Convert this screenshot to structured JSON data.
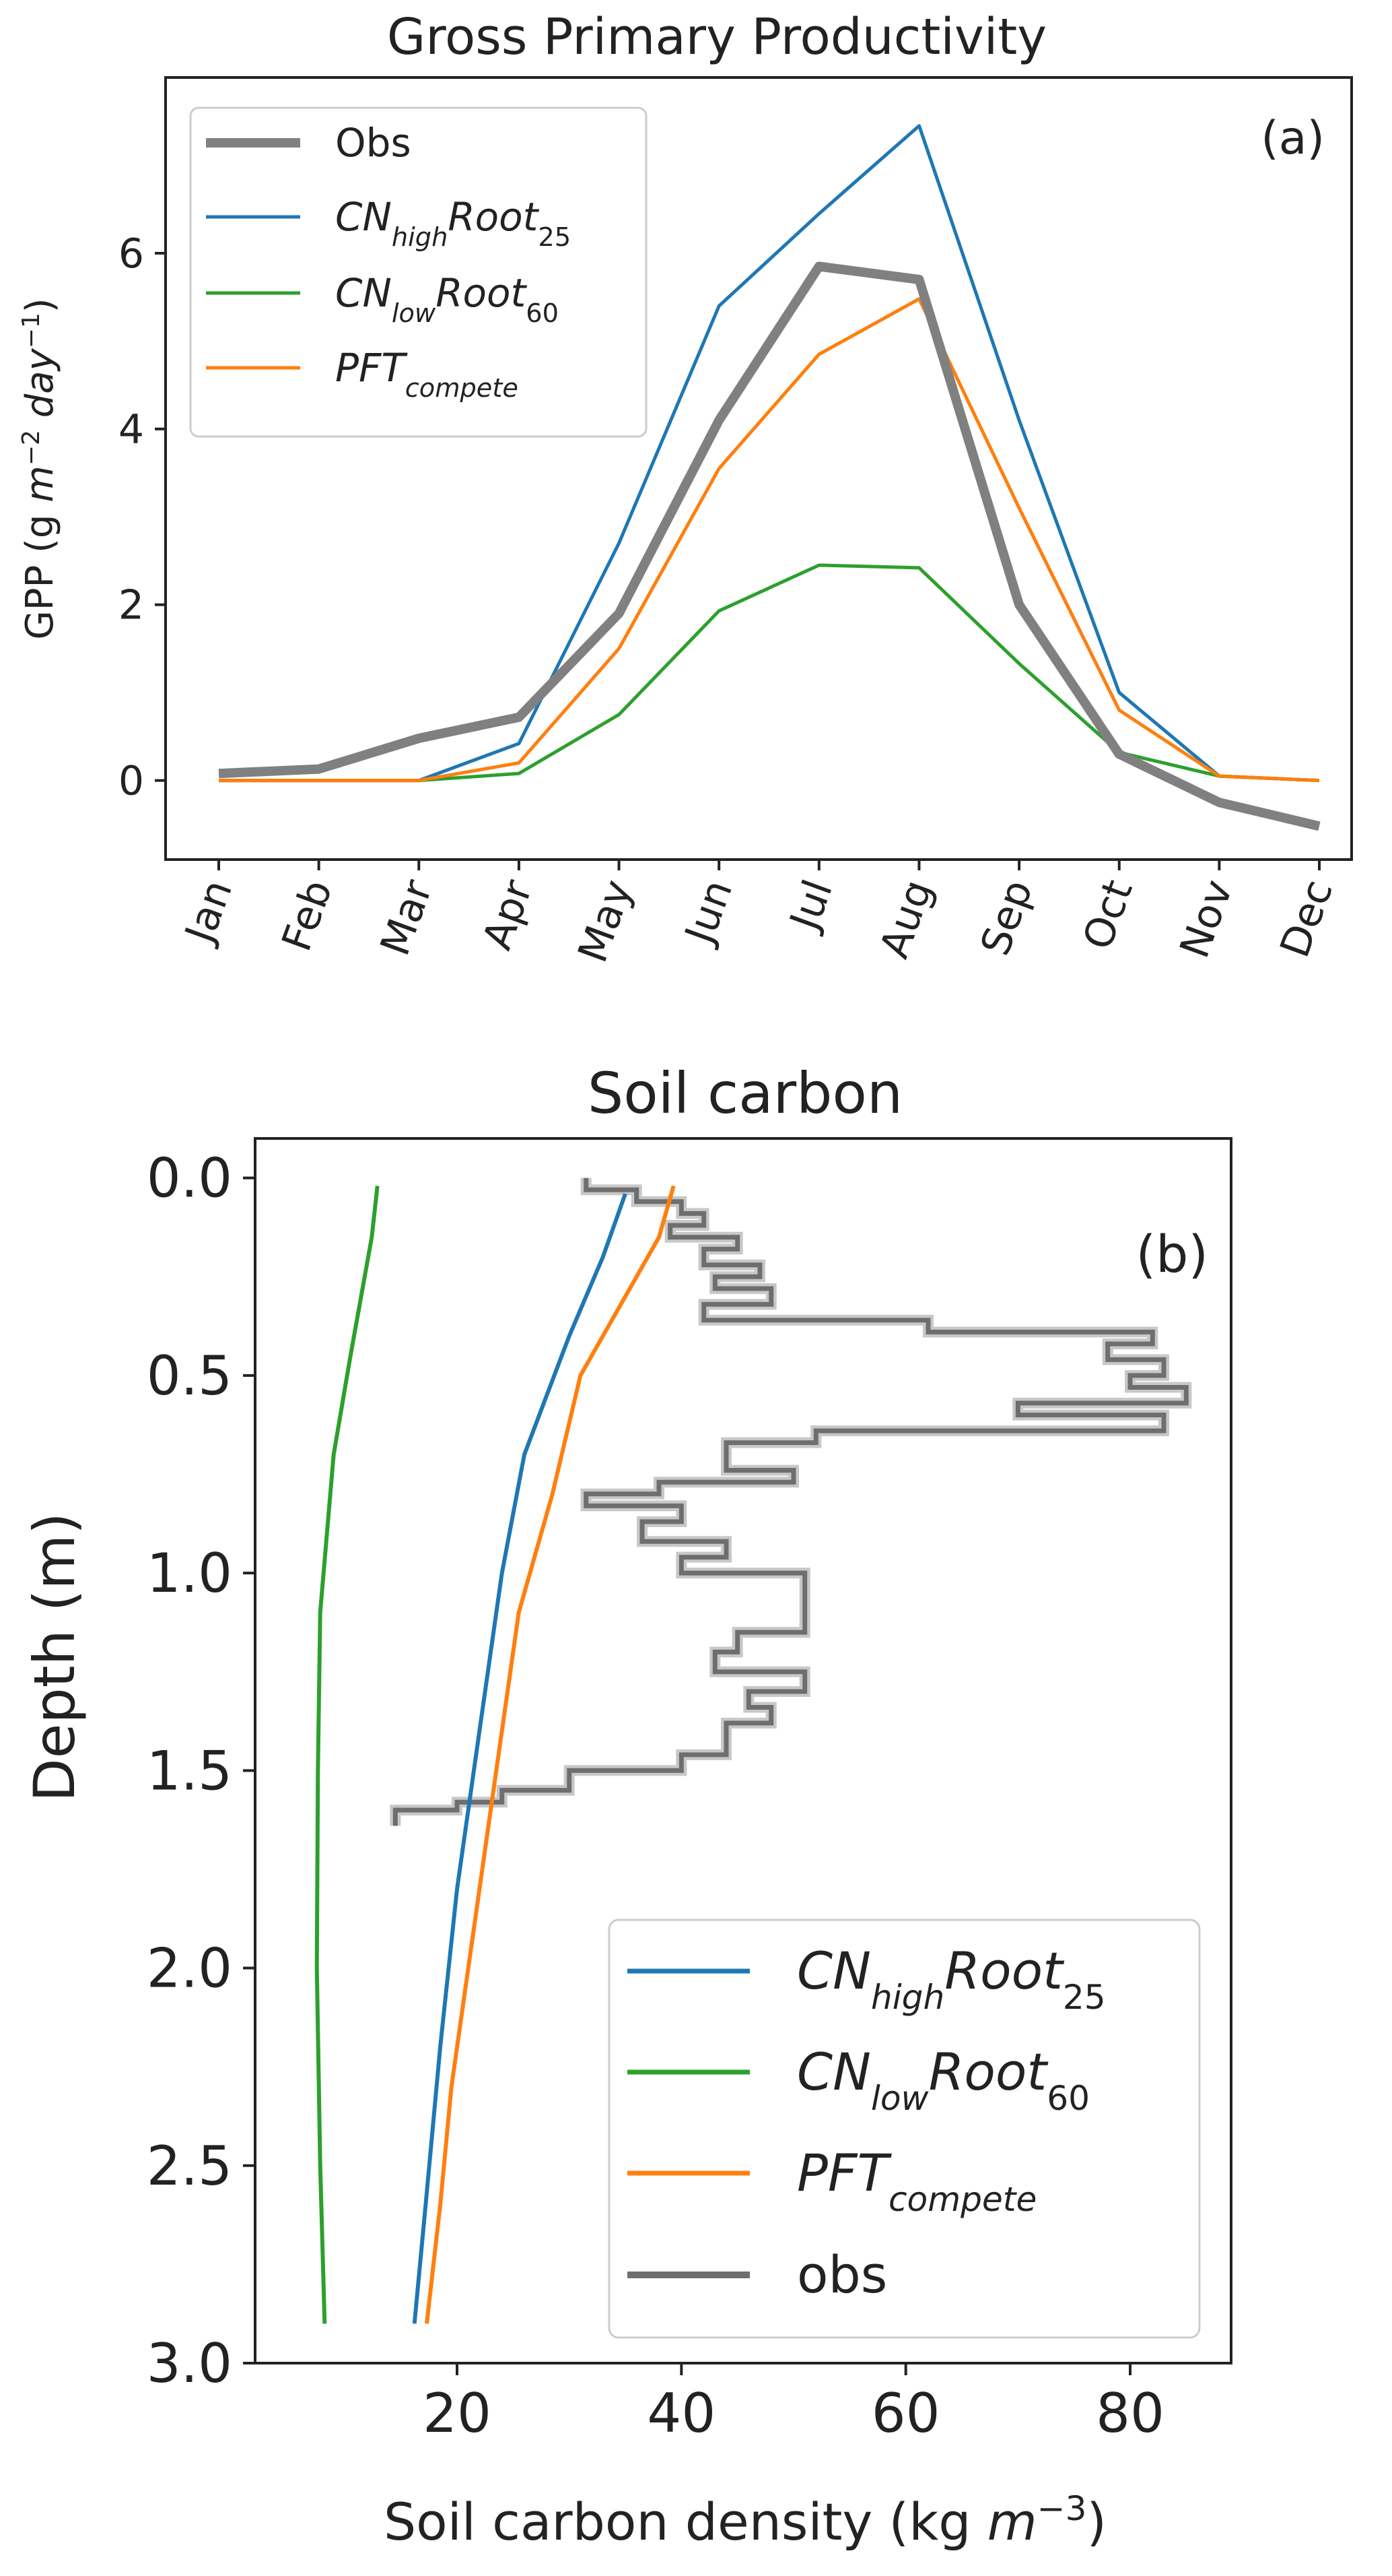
{
  "chart_data": [
    {
      "type": "line",
      "title": "Gross Primary Productivity",
      "panel_label": "(a)",
      "xlabel": "",
      "ylabel": {
        "prefix": "GPP (g ",
        "unit_it": "m",
        "sup1": "−2",
        "unit_it2": "day",
        "sup2": "−1",
        "suffix": ")"
      },
      "categories": [
        "Jan",
        "Feb",
        "Mar",
        "Apr",
        "May",
        "Jun",
        "Jul",
        "Aug",
        "Sep",
        "Oct",
        "Nov",
        "Dec"
      ],
      "ylim": [
        -0.9,
        8.0
      ],
      "yticks": [
        0,
        2,
        4,
        6
      ],
      "legend_position": "top-left",
      "series": [
        {
          "name": "Obs",
          "base": "Obs",
          "sub": "",
          "tail": "",
          "tail_sub": "",
          "color": "#808080",
          "thick": true,
          "values": [
            0.08,
            0.13,
            0.48,
            0.72,
            1.9,
            4.1,
            5.85,
            5.7,
            2.0,
            0.3,
            -0.25,
            -0.52
          ]
        },
        {
          "name": "CN_high Root_25",
          "base": "CN",
          "sub": "high",
          "tail": "Root",
          "tail_sub": "25",
          "color": "#1f77b4",
          "thick": false,
          "values": [
            0.0,
            0.0,
            0.0,
            0.42,
            2.7,
            5.4,
            6.45,
            7.45,
            4.1,
            1.0,
            0.05,
            0.0
          ]
        },
        {
          "name": "CN_low Root_60",
          "base": "CN",
          "sub": "low",
          "tail": "Root",
          "tail_sub": "60",
          "color": "#2ca02c",
          "thick": false,
          "values": [
            0.0,
            0.0,
            0.0,
            0.08,
            0.75,
            1.93,
            2.45,
            2.42,
            1.33,
            0.32,
            0.05,
            0.0
          ]
        },
        {
          "name": "PFT_compete",
          "base": "PFT",
          "sub": "compete",
          "tail": "",
          "tail_sub": "",
          "color": "#ff7f0e",
          "thick": false,
          "values": [
            0.0,
            0.0,
            0.0,
            0.2,
            1.5,
            3.55,
            4.85,
            5.48,
            3.1,
            0.8,
            0.05,
            0.0
          ]
        }
      ]
    },
    {
      "type": "line",
      "title": "Soil carbon",
      "panel_label": "(b)",
      "xlabel": {
        "prefix": "Soil carbon density (kg ",
        "unit_it": "m",
        "sup": "−3",
        "suffix": ")"
      },
      "ylabel": "Depth (m)",
      "xlim": [
        2,
        89
      ],
      "ylim": [
        3.0,
        -0.1
      ],
      "xticks": [
        20,
        40,
        60,
        80
      ],
      "yticks": [
        0.0,
        0.5,
        1.0,
        1.5,
        2.0,
        2.5,
        3.0
      ],
      "ytick_labels": [
        "0.0",
        "0.5",
        "1.0",
        "1.5",
        "2.0",
        "2.5",
        "3.0"
      ],
      "legend_position": "lower-right",
      "series": [
        {
          "name": "CN_high Root_25",
          "base": "CN",
          "sub": "high",
          "tail": "Root",
          "tail_sub": "25",
          "color": "#1f77b4",
          "thick": false,
          "points": [
            [
              35,
              0.04
            ],
            [
              33,
              0.2
            ],
            [
              30,
              0.4
            ],
            [
              28,
              0.55
            ],
            [
              26,
              0.7
            ],
            [
              24,
              1.0
            ],
            [
              22,
              1.4
            ],
            [
              20,
              1.8
            ],
            [
              18.5,
              2.2
            ],
            [
              17.2,
              2.6
            ],
            [
              16.2,
              2.9
            ]
          ]
        },
        {
          "name": "CN_low Root_60",
          "base": "CN",
          "sub": "low",
          "tail": "Root",
          "tail_sub": "60",
          "color": "#2ca02c",
          "thick": false,
          "points": [
            [
              12.9,
              0.02
            ],
            [
              12.4,
              0.15
            ],
            [
              10.5,
              0.45
            ],
            [
              9,
              0.7
            ],
            [
              7.8,
              1.1
            ],
            [
              7.6,
              1.5
            ],
            [
              7.5,
              2.0
            ],
            [
              7.8,
              2.5
            ],
            [
              8.2,
              2.9
            ]
          ]
        },
        {
          "name": "PFT_compete",
          "base": "PFT",
          "sub": "compete",
          "tail": "",
          "tail_sub": "",
          "color": "#ff7f0e",
          "thick": false,
          "points": [
            [
              39.3,
              0.02
            ],
            [
              38,
              0.15
            ],
            [
              35,
              0.3
            ],
            [
              33,
              0.4
            ],
            [
              31,
              0.5
            ],
            [
              28.5,
              0.8
            ],
            [
              25.5,
              1.1
            ],
            [
              23.5,
              1.5
            ],
            [
              21.5,
              1.9
            ],
            [
              19.5,
              2.3
            ],
            [
              18.5,
              2.6
            ],
            [
              17.3,
              2.9
            ]
          ]
        },
        {
          "name": "obs",
          "base": "obs",
          "sub": "",
          "tail": "",
          "tail_sub": "",
          "color": "#6e6e6e",
          "thick": true,
          "points": [
            [
              31.5,
              0.0
            ],
            [
              31.5,
              0.03
            ],
            [
              36,
              0.03
            ],
            [
              36,
              0.06
            ],
            [
              40,
              0.06
            ],
            [
              40,
              0.09
            ],
            [
              42,
              0.09
            ],
            [
              42,
              0.12
            ],
            [
              39,
              0.12
            ],
            [
              39,
              0.15
            ],
            [
              45,
              0.15
            ],
            [
              45,
              0.18
            ],
            [
              42,
              0.18
            ],
            [
              42,
              0.22
            ],
            [
              47,
              0.22
            ],
            [
              47,
              0.25
            ],
            [
              43,
              0.25
            ],
            [
              43,
              0.28
            ],
            [
              48,
              0.28
            ],
            [
              48,
              0.32
            ],
            [
              42,
              0.32
            ],
            [
              42,
              0.36
            ],
            [
              62,
              0.36
            ],
            [
              62,
              0.39
            ],
            [
              82,
              0.39
            ],
            [
              82,
              0.42
            ],
            [
              78,
              0.42
            ],
            [
              78,
              0.46
            ],
            [
              83,
              0.46
            ],
            [
              83,
              0.5
            ],
            [
              80,
              0.5
            ],
            [
              80,
              0.53
            ],
            [
              85,
              0.53
            ],
            [
              85,
              0.57
            ],
            [
              70,
              0.57
            ],
            [
              70,
              0.6
            ],
            [
              83,
              0.6
            ],
            [
              83,
              0.64
            ],
            [
              52,
              0.64
            ],
            [
              52,
              0.67
            ],
            [
              44,
              0.67
            ],
            [
              44,
              0.74
            ],
            [
              50,
              0.74
            ],
            [
              50,
              0.77
            ],
            [
              38,
              0.77
            ],
            [
              38,
              0.8
            ],
            [
              31.5,
              0.8
            ],
            [
              31.5,
              0.83
            ],
            [
              40,
              0.83
            ],
            [
              40,
              0.87
            ],
            [
              36.5,
              0.87
            ],
            [
              36.5,
              0.92
            ],
            [
              44,
              0.92
            ],
            [
              44,
              0.96
            ],
            [
              40,
              0.96
            ],
            [
              40,
              1.0
            ],
            [
              51,
              1.0
            ],
            [
              51,
              1.15
            ],
            [
              45,
              1.15
            ],
            [
              45,
              1.2
            ],
            [
              43,
              1.2
            ],
            [
              43,
              1.25
            ],
            [
              51,
              1.25
            ],
            [
              51,
              1.3
            ],
            [
              46,
              1.3
            ],
            [
              46,
              1.34
            ],
            [
              48,
              1.34
            ],
            [
              48,
              1.38
            ],
            [
              44,
              1.38
            ],
            [
              44,
              1.46
            ],
            [
              40,
              1.46
            ],
            [
              40,
              1.5
            ],
            [
              30,
              1.5
            ],
            [
              30,
              1.55
            ],
            [
              24,
              1.55
            ],
            [
              24,
              1.58
            ],
            [
              20,
              1.58
            ],
            [
              20,
              1.6
            ],
            [
              14.5,
              1.6
            ],
            [
              14.5,
              1.64
            ]
          ]
        }
      ]
    }
  ]
}
